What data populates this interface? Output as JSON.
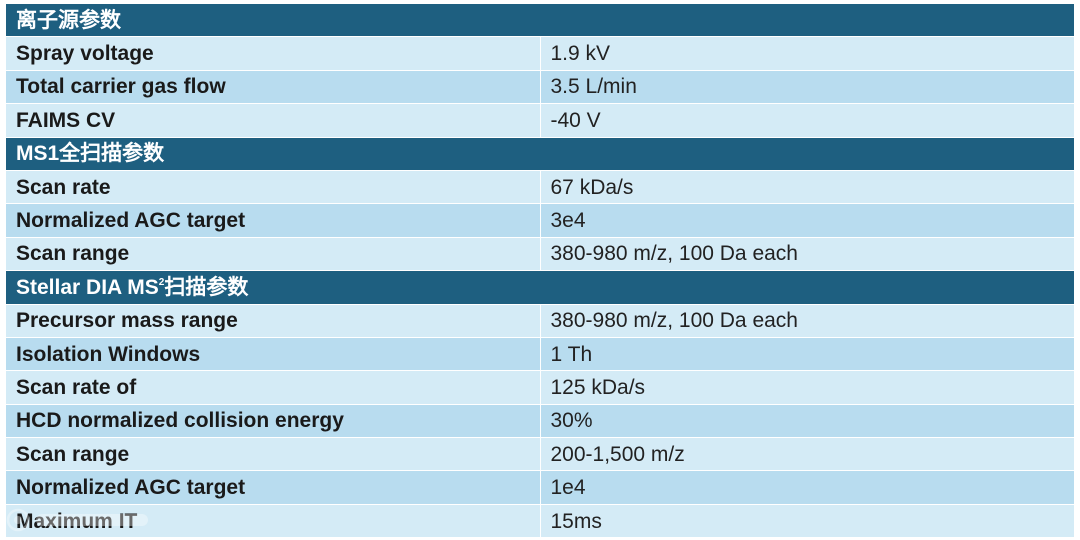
{
  "sections": [
    {
      "title": "离子源参数",
      "rows": [
        {
          "label": "Spray voltage",
          "value": "1.9 kV"
        },
        {
          "label": "Total carrier gas flow",
          "value": "3.5 L/min"
        },
        {
          "label": "FAIMS CV",
          "value": "-40 V"
        }
      ]
    },
    {
      "title": "MS1全扫描参数",
      "rows": [
        {
          "label": "Scan rate",
          "value": "67 kDa/s"
        },
        {
          "label": "Normalized AGC target",
          "value": "3e4"
        },
        {
          "label": "Scan range",
          "value": "380-980 m/z, 100 Da each"
        }
      ]
    },
    {
      "title_prefix": "Stellar DIA MS",
      "title_sup": "2",
      "title_suffix": "扫描参数",
      "rows": [
        {
          "label": "Precursor mass range",
          "value": "380-980 m/z, 100 Da each"
        },
        {
          "label": "Isolation Windows",
          "value": "1 Th"
        },
        {
          "label": "Scan rate of",
          "value": "125 kDa/s"
        },
        {
          "label": "HCD normalized collision energy",
          "value": "30%"
        },
        {
          "label": "Scan range",
          "value": "200-1,500 m/z"
        },
        {
          "label": "Normalized AGC target",
          "value": "1e4"
        },
        {
          "label": "Maximum IT",
          "value": "15ms"
        }
      ]
    }
  ],
  "colors": {
    "section_header": "#1e5f80",
    "row_light": "#d4ebf6",
    "row_dark": "#b8dcef"
  }
}
